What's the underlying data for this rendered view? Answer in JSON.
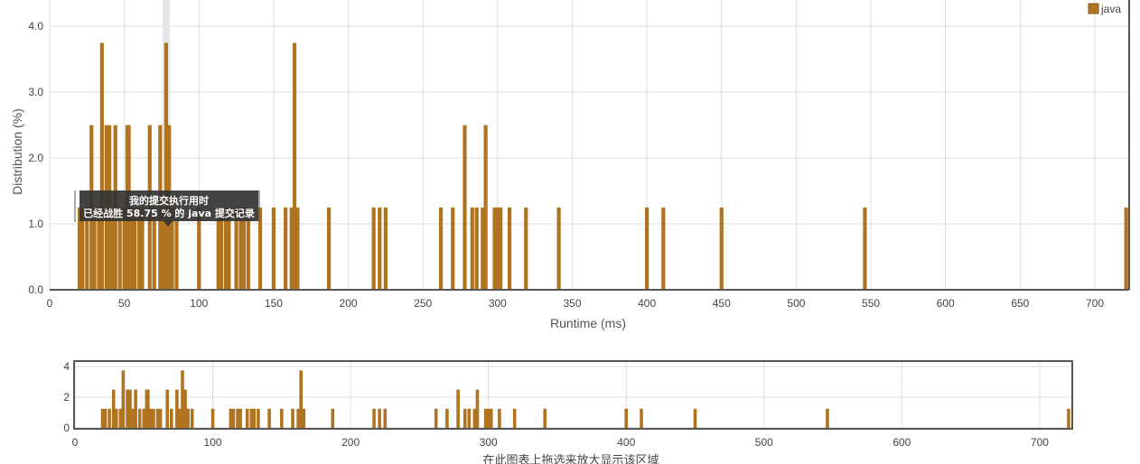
{
  "chart_data": [
    {
      "type": "bar",
      "role": "main",
      "xlabel": "Runtime (ms)",
      "ylabel": "Distribution (%)",
      "xlim": [
        0,
        723
      ],
      "ylim": [
        0,
        4.4
      ],
      "xticks": [
        0,
        50,
        100,
        150,
        200,
        250,
        300,
        350,
        400,
        450,
        500,
        550,
        600,
        650,
        700
      ],
      "yticks": [
        "0.0",
        "1.0",
        "2.0",
        "3.0",
        "4.0"
      ],
      "yticks_values": [
        0,
        1,
        2,
        3,
        4
      ],
      "grid": true,
      "legend_position": "top-right",
      "series": [
        {
          "name": "java",
          "color": "#b07420",
          "x": [
            20,
            22,
            25,
            28,
            30,
            33,
            35,
            38,
            40,
            42,
            44,
            47,
            50,
            52,
            53,
            55,
            57,
            60,
            62,
            67,
            70,
            74,
            76,
            78,
            80,
            82,
            85,
            100,
            113,
            115,
            118,
            120,
            125,
            128,
            130,
            133,
            141,
            150,
            158,
            162,
            164,
            166,
            187,
            217,
            221,
            225,
            262,
            270,
            278,
            283,
            286,
            290,
            292,
            298,
            300,
            302,
            308,
            319,
            341,
            400,
            411,
            450,
            546,
            721
          ],
          "values": [
            1.25,
            1.25,
            1.25,
            2.5,
            1.25,
            1.25,
            3.75,
            2.5,
            2.5,
            1.25,
            2.5,
            1.25,
            1.25,
            2.5,
            2.5,
            1.25,
            1.25,
            1.25,
            1.25,
            2.5,
            1.25,
            2.5,
            1.25,
            3.75,
            2.5,
            1.25,
            1.25,
            1.25,
            1.25,
            1.25,
            1.25,
            1.25,
            1.25,
            1.25,
            1.25,
            1.25,
            1.25,
            1.25,
            1.25,
            1.25,
            3.75,
            1.25,
            1.25,
            1.25,
            1.25,
            1.25,
            1.25,
            1.25,
            2.5,
            1.25,
            1.25,
            1.25,
            2.5,
            1.25,
            1.25,
            1.25,
            1.25,
            1.25,
            1.25,
            1.25,
            1.25,
            1.25,
            1.25,
            1.25
          ]
        }
      ],
      "highlight": {
        "x": 78
      },
      "tooltip": {
        "line1": "我的提交执行用时",
        "line2": "已经战胜 58.75 % 的 java 提交记录"
      }
    },
    {
      "type": "bar",
      "role": "navigator",
      "xlim": [
        0,
        723
      ],
      "ylim": [
        0,
        4.3
      ],
      "xticks": [
        0,
        100,
        200,
        300,
        400,
        500,
        600,
        700
      ],
      "yticks": [
        "0",
        "2",
        "4"
      ],
      "yticks_values": [
        0,
        2,
        4
      ],
      "caption": "在此图表上拖选来放大显示该区域"
    }
  ],
  "legend": {
    "label": "java",
    "color": "#b07420"
  },
  "colors": {
    "bar": "#b07420",
    "grid": "#dddddd",
    "axis": "#555555",
    "tooltip_bg": "#333333",
    "highlight": "#e6e6e6"
  }
}
